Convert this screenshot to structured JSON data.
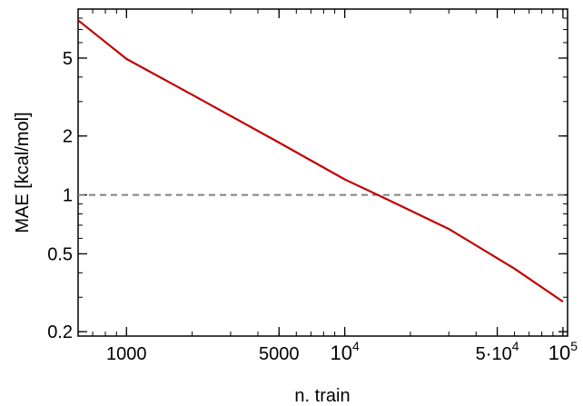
{
  "chart_data": {
    "type": "line",
    "xlabel": "n. train",
    "ylabel": "MAE [kcal/mol]",
    "xscale": "log",
    "yscale": "log",
    "xlim": [
      600,
      105000
    ],
    "ylim": [
      0.19,
      8.9
    ],
    "x_ticks": [
      {
        "value": 1000,
        "label": "1000"
      },
      {
        "value": 5000,
        "label": "5000"
      },
      {
        "value": 10000,
        "base": "10",
        "exp": "4"
      },
      {
        "value": 50000,
        "label": "5·10",
        "exp": "4"
      },
      {
        "value": 100000,
        "base": "10",
        "exp": "5"
      }
    ],
    "y_ticks": [
      {
        "value": 0.2,
        "label": "0.2"
      },
      {
        "value": 0.5,
        "label": "0.5"
      },
      {
        "value": 1,
        "label": "1"
      },
      {
        "value": 2,
        "label": "2"
      },
      {
        "value": 5,
        "label": "5"
      }
    ],
    "series": [
      {
        "color": "#c00000",
        "x": [
          600,
          1000,
          2000,
          5000,
          10000,
          15000,
          30000,
          60000,
          100000
        ],
        "y": [
          7.8,
          4.95,
          3.25,
          1.85,
          1.2,
          0.97,
          0.67,
          0.42,
          0.285
        ]
      }
    ],
    "reference_lines": [
      {
        "orientation": "horizontal",
        "y": 1,
        "style": "dashed",
        "color": "#808080"
      }
    ],
    "grid": false,
    "legend": "none"
  }
}
